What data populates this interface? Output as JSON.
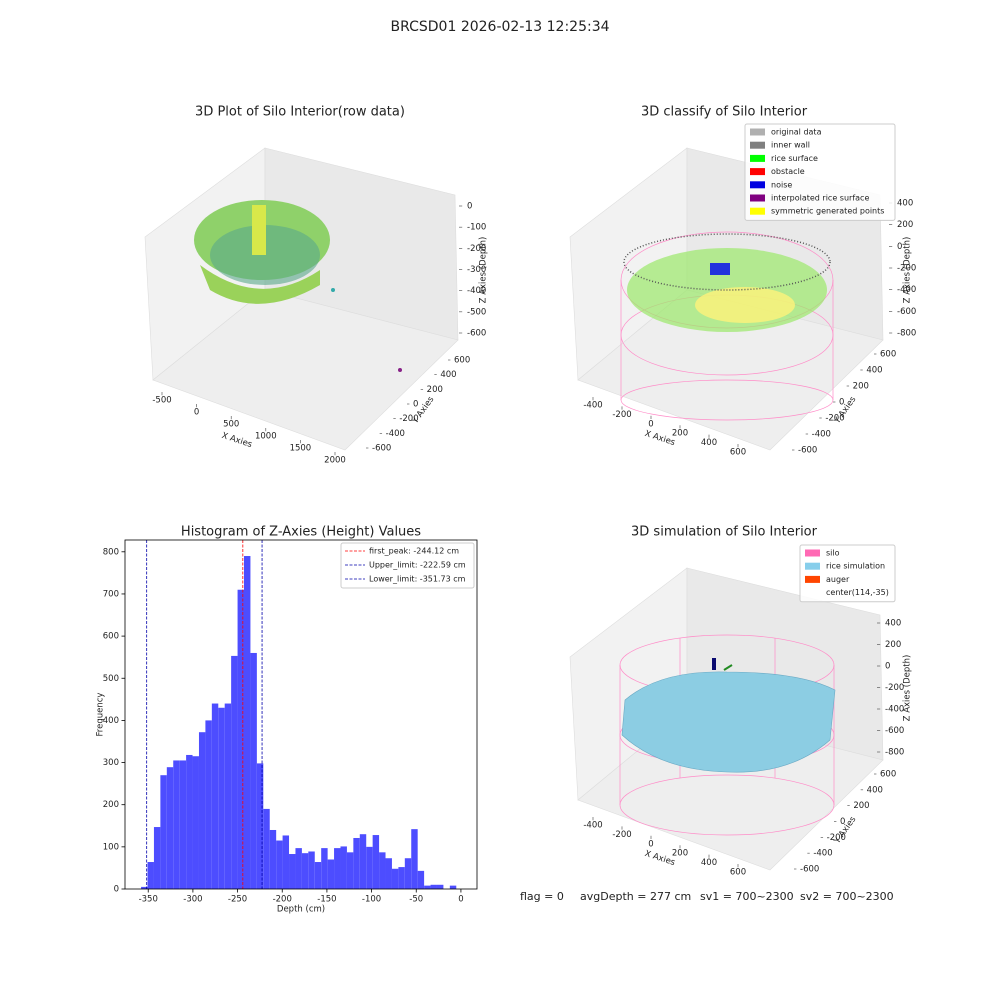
{
  "title": "BRCSD01 2026-02-13 12:25:34",
  "footer": [
    "flag = 0",
    "avgDepth = 277 cm",
    "sv1 = 700~2300",
    "sv2 = 700~2300"
  ],
  "chart_data": [
    {
      "type": "scatter3d",
      "title": "3D Plot of Silo Interior(row data)",
      "xlabel": "X Axies",
      "ylabel": "Y Axies",
      "zlabel": "Z Axies (Depth)",
      "xticks": [
        -500,
        0,
        500,
        1000,
        1500,
        2000
      ],
      "yticks": [
        -600,
        -400,
        -200,
        0,
        200,
        400,
        600
      ],
      "zticks": [
        -600,
        -500,
        -400,
        -300,
        -200,
        -100,
        0
      ]
    },
    {
      "type": "scatter3d",
      "title": "3D classify of Silo Interior",
      "xlabel": "X Axies",
      "ylabel": "Y Axies",
      "zlabel": "Z Axies (Depth)",
      "xticks": [
        -400,
        -200,
        0,
        200,
        400,
        600
      ],
      "yticks": [
        -600,
        -400,
        -200,
        0,
        200,
        400,
        600
      ],
      "zticks": [
        -800,
        -600,
        -400,
        -200,
        0,
        200,
        400
      ],
      "legend": [
        {
          "name": "original data",
          "color": "#b0b0b0"
        },
        {
          "name": "inner wall",
          "color": "#808080"
        },
        {
          "name": "rice surface",
          "color": "#00ff00"
        },
        {
          "name": "obstacle",
          "color": "#ff0000"
        },
        {
          "name": "noise",
          "color": "#0000e0"
        },
        {
          "name": "interpolated rice surface",
          "color": "#800080"
        },
        {
          "name": "symmetric generated points",
          "color": "#ffff00"
        }
      ]
    },
    {
      "type": "histogram",
      "title": "Histogram of Z-Axies (Height) Values",
      "xlabel": "Depth (cm)",
      "ylabel": "Frequency",
      "color": "#4d4dff",
      "bins": [
        -358,
        -350.8,
        -343.6,
        -336.4,
        -329.2,
        -322,
        -314.8,
        -307.6,
        -300.4,
        -293.2,
        -286,
        -278.8,
        -271.6,
        -264.4,
        -257.2,
        -250,
        -242.8,
        -235.6,
        -228.4,
        -221.2,
        -214,
        -206.8,
        -199.6,
        -192.4,
        -185.2,
        -178,
        -170.8,
        -163.6,
        -156.4,
        -149.2,
        -142,
        -134.8,
        -127.6,
        -120.4,
        -113.2,
        -106,
        -98.8,
        -91.6,
        -84.4,
        -77.2,
        -70,
        -62.8,
        -55.6,
        -48.4,
        -41.2,
        -34,
        -26.8,
        -19.6,
        -12.4,
        -5.2,
        2
      ],
      "values": [
        5,
        64,
        147,
        270,
        289,
        305,
        305,
        318,
        315,
        372,
        400,
        440,
        430,
        440,
        553,
        710,
        790,
        560,
        298,
        190,
        140,
        115,
        127,
        83,
        97,
        85,
        89,
        64,
        97,
        70,
        97,
        101,
        87,
        121,
        130,
        100,
        128,
        87,
        73,
        48,
        52,
        73,
        142,
        43,
        8,
        10,
        10,
        0,
        8,
        0
      ],
      "xlim": [
        -376,
        18
      ],
      "ylim": [
        0,
        828
      ],
      "xticks": [
        -350,
        -300,
        -250,
        -200,
        -150,
        -100,
        -50,
        0
      ],
      "yticks": [
        0,
        100,
        200,
        300,
        400,
        500,
        600,
        700,
        800
      ],
      "vlines": [
        {
          "name": "first_peak: -244.12 cm",
          "value": -244.12,
          "color": "#ff0000"
        },
        {
          "name": "Upper_limit: -222.59 cm",
          "value": -222.59,
          "color": "#0000aa"
        },
        {
          "name": "Lower_limit: -351.73 cm",
          "value": -351.73,
          "color": "#0000aa"
        }
      ]
    },
    {
      "type": "scatter3d",
      "title": "3D simulation of Silo Interior",
      "xlabel": "X Axies",
      "ylabel": "Y Axies",
      "zlabel": "Z Axies (Depth)",
      "xticks": [
        -400,
        -200,
        0,
        200,
        400,
        600
      ],
      "yticks": [
        -600,
        -400,
        -200,
        0,
        200,
        400,
        600
      ],
      "zticks": [
        -800,
        -600,
        -400,
        -200,
        0,
        200,
        400
      ],
      "legend": [
        {
          "name": "silo",
          "color": "#ff69b4"
        },
        {
          "name": "rice simulation",
          "color": "#87ceeb"
        },
        {
          "name": "auger",
          "color": "#ff4500"
        },
        {
          "name": "center(114,-35)"
        }
      ]
    }
  ]
}
